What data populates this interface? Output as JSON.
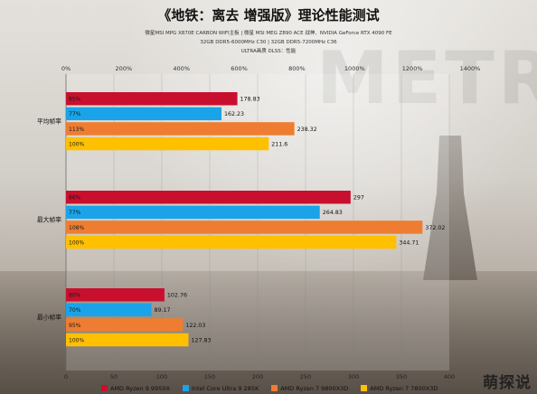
{
  "page": {
    "title": "《地铁：离去 增强版》理论性能测试",
    "subtitles": [
      "微星MSI MPG X870E CARBON WIFI主板 | 微星 MSI MEG Z890 ACE 战神、NVIDIA GeForce RTX 4090 FE",
      "32GB DDR5-6000MHz  C30 | 32GB DDR5-7200MHz  C36",
      "ULTRA画质  DLSS：性能"
    ],
    "watermark": "萌探说"
  },
  "colors": {
    "amd_9950x": "#c8102e",
    "intel_285k": "#1aa3e8",
    "amd_9800x3d": "#ee7d31",
    "amd_7800x3d": "#ffc000"
  },
  "chart_data": {
    "type": "bar",
    "orientation": "horizontal",
    "categories": [
      "平均帧率",
      "最大帧率",
      "最小帧率"
    ],
    "series": [
      {
        "name": "AMD Ryzen 9 9950X",
        "color": "#c8102e",
        "values": [
          178.83,
          297,
          102.76
        ],
        "percent_labels": [
          "85%",
          "86%",
          "80%"
        ]
      },
      {
        "name": "Intel Core Ultra 9 285K",
        "color": "#1aa3e8",
        "values": [
          162.23,
          264.83,
          89.17
        ],
        "percent_labels": [
          "77%",
          "77%",
          "70%"
        ]
      },
      {
        "name": "AMD Ryzen 7 9800X3D",
        "color": "#ee7d31",
        "values": [
          238.32,
          372.02,
          122.03
        ],
        "percent_labels": [
          "113%",
          "108%",
          "95%"
        ]
      },
      {
        "name": "AMD Ryzen 7 7800X3D",
        "color": "#ffc000",
        "values": [
          211.6,
          344.71,
          127.83
        ],
        "percent_labels": [
          "100%",
          "100%",
          "100%"
        ]
      }
    ],
    "x_axis_bottom": {
      "min": 0,
      "max": 400,
      "ticks": [
        "0",
        "50",
        "100",
        "150",
        "200",
        "250",
        "300",
        "350",
        "400"
      ]
    },
    "x_axis_top": {
      "ticks": [
        "0%",
        "200%",
        "400%",
        "600%",
        "800%",
        "1000%",
        "1200%",
        "1400%"
      ]
    },
    "legend_position": "bottom",
    "grid": true
  }
}
